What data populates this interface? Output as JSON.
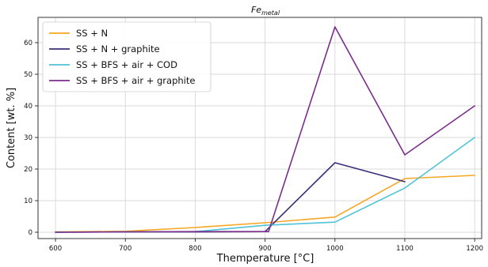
{
  "chart_data": {
    "type": "line",
    "title": "Fe",
    "title_sub": "metal",
    "xlabel": "Themperature [°C]",
    "ylabel": "Content [wt. %]",
    "x": [
      600,
      700,
      800,
      900,
      1000,
      1100,
      1200
    ],
    "xlim": [
      575,
      1210
    ],
    "ylim": [
      -2,
      68
    ],
    "xticks": [
      600,
      700,
      800,
      900,
      1000,
      1100,
      1200
    ],
    "yticks": [
      0,
      10,
      20,
      30,
      40,
      50,
      60
    ],
    "grid": true,
    "legend_position": "top-left",
    "series": [
      {
        "name": "SS + N",
        "color": "#f5a623",
        "points": [
          [
            600,
            0.1
          ],
          [
            700,
            0.3
          ],
          [
            800,
            1.5
          ],
          [
            900,
            3.0
          ],
          [
            1000,
            4.8
          ],
          [
            1100,
            17.0
          ],
          [
            1200,
            18.0
          ]
        ]
      },
      {
        "name": "SS + N + graphite",
        "color": "#3b2d7a",
        "points": [
          [
            600,
            0.0
          ],
          [
            700,
            0.1
          ],
          [
            800,
            0.1
          ],
          [
            900,
            0.2
          ],
          [
            1000,
            22.0
          ],
          [
            1100,
            16.0
          ]
        ]
      },
      {
        "name": "SS + BFS + air + COD",
        "color": "#4fc3d6",
        "points": [
          [
            600,
            0.0
          ],
          [
            700,
            0.1
          ],
          [
            800,
            0.2
          ],
          [
            900,
            2.2
          ],
          [
            1000,
            3.2
          ],
          [
            1100,
            14.0
          ],
          [
            1200,
            30.0
          ]
        ]
      },
      {
        "name": "SS + BFS + air + graphite",
        "color": "#7b2d8b",
        "points": [
          [
            600,
            0.0
          ],
          [
            700,
            0.1
          ],
          [
            800,
            0.2
          ],
          [
            905,
            0.2
          ],
          [
            1000,
            65.0
          ],
          [
            1100,
            24.5
          ],
          [
            1200,
            40.0
          ]
        ]
      }
    ]
  }
}
